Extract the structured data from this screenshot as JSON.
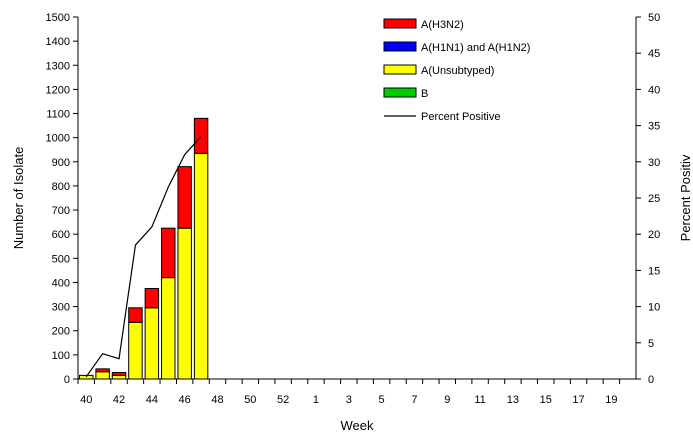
{
  "chart_data": {
    "type": "bar",
    "stacked": true,
    "x_labels_shown": [
      "40",
      "42",
      "44",
      "46",
      "48",
      "50",
      "52",
      "1",
      "3",
      "5",
      "7",
      "9",
      "11",
      "13",
      "15",
      "17",
      "19"
    ],
    "weeks": [
      "40",
      "41",
      "42",
      "43",
      "44",
      "45",
      "46",
      "47",
      "48",
      "49",
      "50",
      "51",
      "52",
      "53",
      "1",
      "2",
      "3",
      "4",
      "5",
      "6",
      "7",
      "8",
      "9",
      "10",
      "11",
      "12",
      "13",
      "14",
      "15",
      "16",
      "17",
      "18",
      "19",
      "20"
    ],
    "series": [
      {
        "name": "A(Unsubtyped)",
        "color": "#ffff00",
        "values": [
          15,
          30,
          15,
          235,
          295,
          420,
          625,
          935
        ]
      },
      {
        "name": "A(H1N1) and A(H1N2)",
        "color": "#0000ff",
        "values": [
          0,
          0,
          0,
          0,
          0,
          0,
          0,
          0
        ]
      },
      {
        "name": "A(H3N2)",
        "color": "#ff0000",
        "values": [
          0,
          12,
          12,
          60,
          80,
          205,
          255,
          145
        ]
      },
      {
        "name": "B",
        "color": "#00cc00",
        "values": [
          0,
          0,
          0,
          0,
          0,
          0,
          0,
          0
        ]
      }
    ],
    "legend_order": [
      "A(H3N2)",
      "A(H1N1) and A(H1N2)",
      "A(Unsubtyped)",
      "B",
      "Percent Positive"
    ],
    "percent_positive": {
      "name": "Percent Positive",
      "color": "#000000",
      "values": [
        0.3,
        3.5,
        2.8,
        18.5,
        21,
        26.5,
        31,
        33.5
      ]
    },
    "xlabel": "Week",
    "ylabel": "Number of Isolate",
    "y2label": "Percent Positiv",
    "ylim": [
      0,
      1500
    ],
    "y2lim": [
      0,
      50
    ],
    "yticks": [
      0,
      100,
      200,
      300,
      400,
      500,
      600,
      700,
      800,
      900,
      1000,
      1100,
      1200,
      1300,
      1400,
      1500
    ],
    "y2ticks": [
      0,
      5,
      10,
      15,
      20,
      25,
      30,
      35,
      40,
      45,
      50
    ],
    "legend_position": "top-right",
    "grid": false
  }
}
